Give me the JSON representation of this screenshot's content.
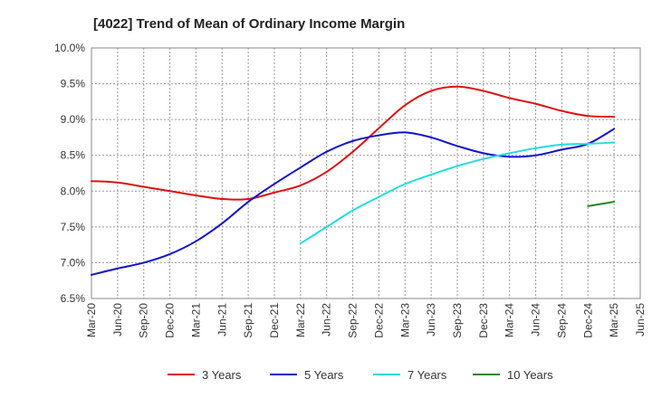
{
  "chart_data": {
    "type": "line",
    "title": "[4022]  Trend of Mean of Ordinary Income Margin",
    "xlabel": "",
    "ylabel": "",
    "x_ticks": [
      "Mar-20",
      "Jun-20",
      "Sep-20",
      "Dec-20",
      "Mar-21",
      "Jun-21",
      "Sep-21",
      "Dec-21",
      "Mar-22",
      "Jun-22",
      "Sep-22",
      "Dec-22",
      "Mar-23",
      "Jun-23",
      "Sep-23",
      "Dec-23",
      "Mar-24",
      "Jun-24",
      "Sep-24",
      "Dec-24",
      "Mar-25",
      "Jun-25"
    ],
    "y_ticks": [
      "6.5%",
      "7.0%",
      "7.5%",
      "8.0%",
      "8.5%",
      "9.0%",
      "9.5%",
      "10.0%"
    ],
    "ylim": [
      6.5,
      10.0
    ],
    "grid": true,
    "legend_position": "bottom",
    "series": [
      {
        "name": "3 Years",
        "color": "#dd1111",
        "x": [
          "Mar-20",
          "Jun-20",
          "Sep-20",
          "Dec-20",
          "Mar-21",
          "Jun-21",
          "Sep-21",
          "Dec-21",
          "Mar-22",
          "Jun-22",
          "Sep-22",
          "Dec-22",
          "Mar-23",
          "Jun-23",
          "Sep-23",
          "Dec-23",
          "Mar-24",
          "Jun-24",
          "Sep-24",
          "Dec-24",
          "Mar-25"
        ],
        "values": [
          8.14,
          8.12,
          8.06,
          8.0,
          7.94,
          7.89,
          7.89,
          7.98,
          8.08,
          8.27,
          8.55,
          8.88,
          9.2,
          9.4,
          9.46,
          9.4,
          9.3,
          9.22,
          9.12,
          9.05,
          9.04
        ]
      },
      {
        "name": "5 Years",
        "color": "#1111cc",
        "x": [
          "Mar-20",
          "Jun-20",
          "Sep-20",
          "Dec-20",
          "Mar-21",
          "Jun-21",
          "Sep-21",
          "Dec-21",
          "Mar-22",
          "Jun-22",
          "Sep-22",
          "Dec-22",
          "Mar-23",
          "Jun-23",
          "Sep-23",
          "Dec-23",
          "Mar-24",
          "Jun-24",
          "Sep-24",
          "Dec-24",
          "Mar-25"
        ],
        "values": [
          6.83,
          6.92,
          7.0,
          7.12,
          7.3,
          7.55,
          7.85,
          8.1,
          8.33,
          8.55,
          8.7,
          8.78,
          8.82,
          8.75,
          8.63,
          8.53,
          8.48,
          8.5,
          8.58,
          8.66,
          8.87
        ]
      },
      {
        "name": "7 Years",
        "color": "#22dddd",
        "x": [
          "Mar-22",
          "Jun-22",
          "Sep-22",
          "Dec-22",
          "Mar-23",
          "Jun-23",
          "Sep-23",
          "Dec-23",
          "Mar-24",
          "Jun-24",
          "Sep-24",
          "Dec-24",
          "Mar-25"
        ],
        "values": [
          7.27,
          7.5,
          7.73,
          7.92,
          8.1,
          8.23,
          8.35,
          8.45,
          8.53,
          8.6,
          8.65,
          8.66,
          8.68
        ]
      },
      {
        "name": "10 Years",
        "color": "#228822",
        "x": [
          "Dec-24",
          "Mar-25"
        ],
        "values": [
          7.79,
          7.85
        ]
      }
    ]
  }
}
